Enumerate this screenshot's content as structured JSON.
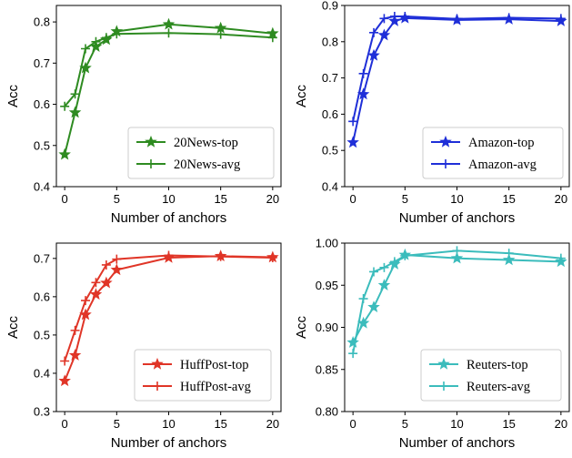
{
  "chart_data": [
    {
      "type": "line",
      "panel": "top-left",
      "x": [
        0,
        1,
        2,
        3,
        4,
        5,
        10,
        15,
        20
      ],
      "xlim": [
        -0.8,
        20.8
      ],
      "xticks": [
        0,
        5,
        10,
        15,
        20
      ],
      "ylim": [
        0.4,
        0.84
      ],
      "yticks": [
        0.4,
        0.5,
        0.6,
        0.7,
        0.8
      ],
      "ytick_labels": [
        "0.4",
        "0.5",
        "0.6",
        "0.7",
        "0.8"
      ],
      "xlabel": "Number of anchors",
      "ylabel": "Acc",
      "legend_position": "lower-right",
      "color": "#2e8b21",
      "series": [
        {
          "name": "20News-top",
          "marker": "star",
          "values": [
            0.478,
            0.58,
            0.688,
            0.74,
            0.757,
            0.777,
            0.794,
            0.785,
            0.772
          ]
        },
        {
          "name": "20News-avg",
          "marker": "plus",
          "values": [
            0.595,
            0.625,
            0.735,
            0.752,
            0.762,
            0.771,
            0.773,
            0.77,
            0.762
          ]
        }
      ]
    },
    {
      "type": "line",
      "panel": "top-right",
      "x": [
        0,
        1,
        2,
        3,
        4,
        5,
        10,
        15,
        20
      ],
      "xlim": [
        -0.8,
        20.8
      ],
      "xticks": [
        0,
        5,
        10,
        15,
        20
      ],
      "ylim": [
        0.4,
        0.9
      ],
      "yticks": [
        0.4,
        0.5,
        0.6,
        0.7,
        0.8,
        0.9
      ],
      "ytick_labels": [
        "0.4",
        "0.5",
        "0.6",
        "0.7",
        "0.8",
        "0.9"
      ],
      "xlabel": "Number of anchors",
      "ylabel": "Acc",
      "legend_position": "lower-right",
      "color": "#1f2fd8",
      "series": [
        {
          "name": "Amazon-top",
          "marker": "star",
          "values": [
            0.522,
            0.655,
            0.762,
            0.818,
            0.857,
            0.865,
            0.86,
            0.862,
            0.857
          ]
        },
        {
          "name": "Amazon-avg",
          "marker": "plus",
          "values": [
            0.58,
            0.712,
            0.825,
            0.864,
            0.87,
            0.87,
            0.863,
            0.866,
            0.864
          ]
        }
      ]
    },
    {
      "type": "line",
      "panel": "bottom-left",
      "x": [
        0,
        1,
        2,
        3,
        4,
        5,
        10,
        15,
        20
      ],
      "xlim": [
        -0.8,
        20.8
      ],
      "xticks": [
        0,
        5,
        10,
        15,
        20
      ],
      "ylim": [
        0.3,
        0.74
      ],
      "yticks": [
        0.3,
        0.4,
        0.5,
        0.6,
        0.7
      ],
      "ytick_labels": [
        "0.3",
        "0.4",
        "0.5",
        "0.6",
        "0.7"
      ],
      "xlabel": "Number of anchors",
      "ylabel": "Acc",
      "legend_position": "lower-right",
      "color": "#e03527",
      "series": [
        {
          "name": "HuffPost-top",
          "marker": "star",
          "values": [
            0.38,
            0.447,
            0.553,
            0.606,
            0.636,
            0.67,
            0.702,
            0.706,
            0.703
          ]
        },
        {
          "name": "HuffPost-avg",
          "marker": "plus",
          "values": [
            0.432,
            0.512,
            0.59,
            0.637,
            0.683,
            0.698,
            0.708,
            0.705,
            0.702
          ]
        }
      ]
    },
    {
      "type": "line",
      "panel": "bottom-right",
      "x": [
        0,
        1,
        2,
        3,
        4,
        5,
        10,
        15,
        20
      ],
      "xlim": [
        -0.8,
        20.8
      ],
      "xticks": [
        0,
        5,
        10,
        15,
        20
      ],
      "ylim": [
        0.8,
        1.0
      ],
      "yticks": [
        0.8,
        0.85,
        0.9,
        0.95,
        1.0
      ],
      "ytick_labels": [
        "0.80",
        "0.85",
        "0.90",
        "0.95",
        "1.00"
      ],
      "xlabel": "Number of anchors",
      "ylabel": "Acc",
      "legend_position": "lower-right",
      "color": "#3bbcbc",
      "series": [
        {
          "name": "Reuters-top",
          "marker": "star",
          "values": [
            0.882,
            0.905,
            0.924,
            0.95,
            0.975,
            0.986,
            0.982,
            0.98,
            0.978
          ]
        },
        {
          "name": "Reuters-avg",
          "marker": "plus",
          "values": [
            0.869,
            0.934,
            0.966,
            0.971,
            0.978,
            0.985,
            0.991,
            0.988,
            0.982
          ]
        }
      ]
    }
  ]
}
